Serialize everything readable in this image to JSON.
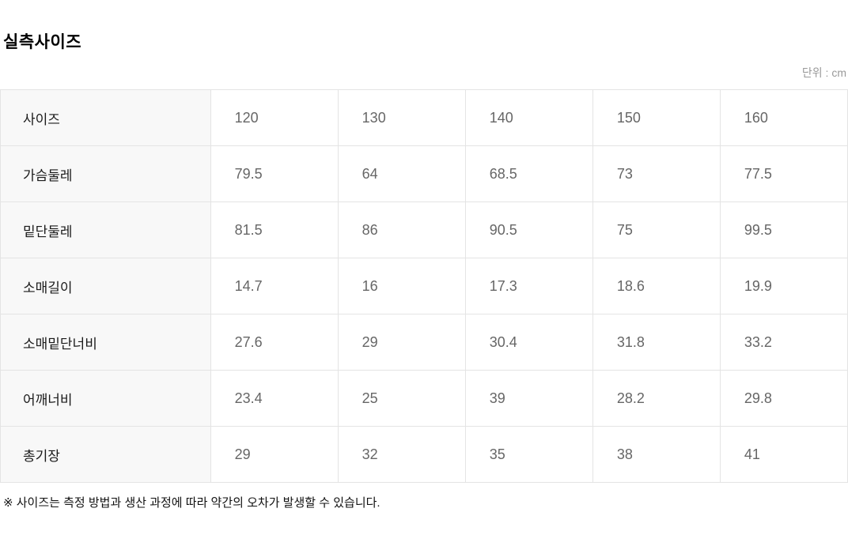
{
  "header": {
    "title": "실측사이즈",
    "unit_label": "단위 : cm"
  },
  "table": {
    "rows": [
      {
        "label": "사이즈",
        "values": [
          "120",
          "130",
          "140",
          "150",
          "160"
        ]
      },
      {
        "label": "가슴둘레",
        "values": [
          "79.5",
          "64",
          "68.5",
          "73",
          "77.5"
        ]
      },
      {
        "label": "밑단둘레",
        "values": [
          "81.5",
          "86",
          "90.5",
          "75",
          "99.5"
        ]
      },
      {
        "label": "소매길이",
        "values": [
          "14.7",
          "16",
          "17.3",
          "18.6",
          "19.9"
        ]
      },
      {
        "label": "소매밑단너비",
        "values": [
          "27.6",
          "29",
          "30.4",
          "31.8",
          "33.2"
        ]
      },
      {
        "label": "어깨너비",
        "values": [
          "23.4",
          "25",
          "39",
          "28.2",
          "29.8"
        ]
      },
      {
        "label": "총기장",
        "values": [
          "29",
          "32",
          "35",
          "38",
          "41"
        ]
      }
    ]
  },
  "footer": {
    "note": "※ 사이즈는 측정 방법과 생산 과정에 따라 약간의 오차가 발생할 수 있습니다."
  },
  "colors": {
    "label_cell_bg": "#f8f8f8",
    "table_border": "#e4e4e4",
    "label_text": "#1a1a1a",
    "value_text": "#666666",
    "unit_text": "#999999",
    "title_text": "#000000"
  }
}
